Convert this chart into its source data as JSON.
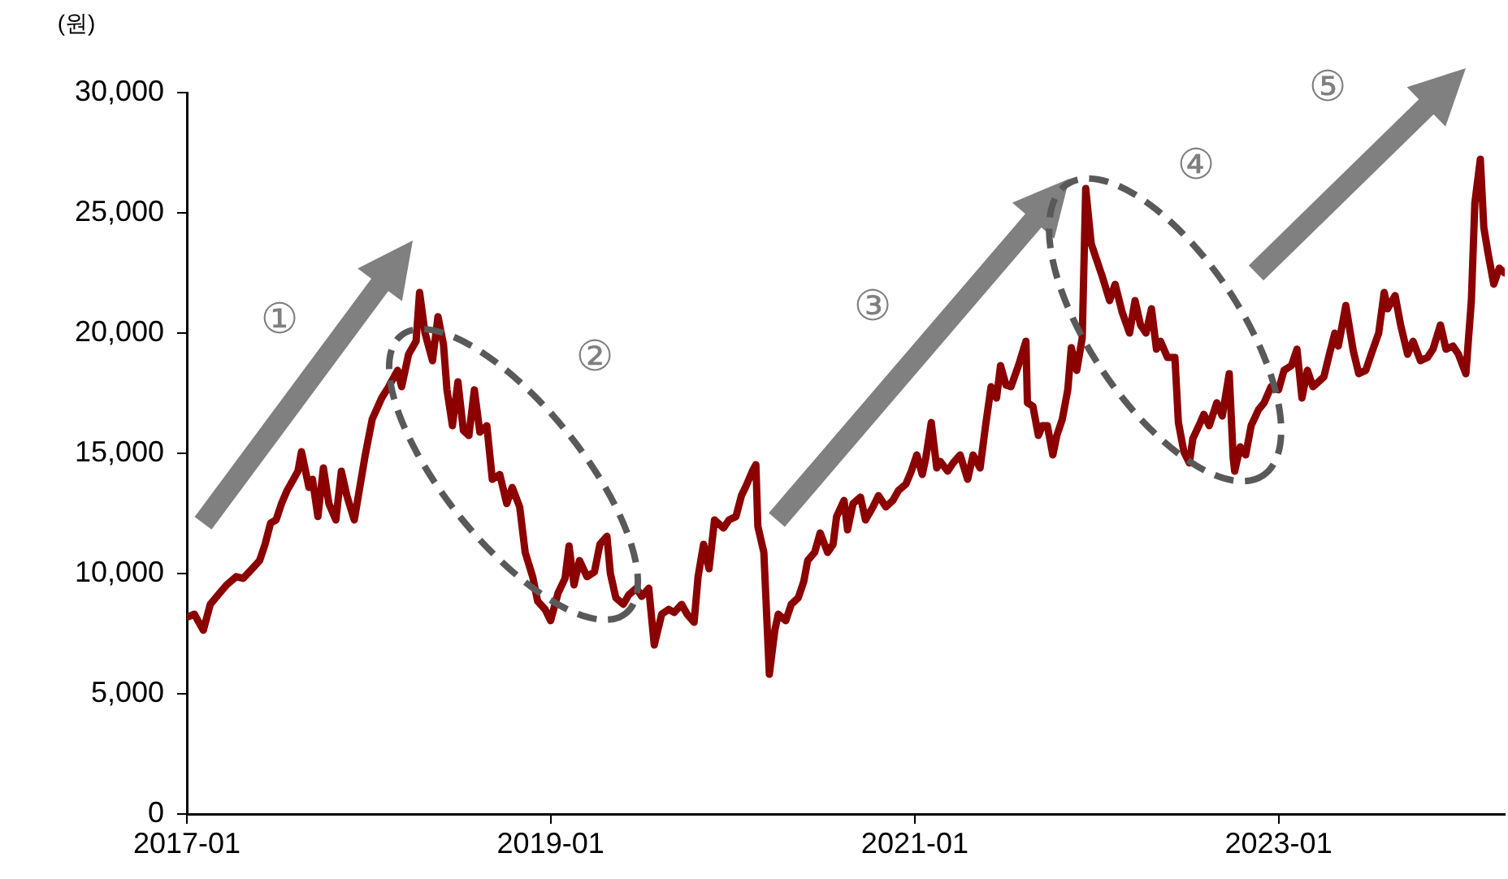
{
  "chart_data": {
    "type": "line",
    "ylabel": "(원)",
    "x": [
      "2017-01-01",
      "2017-01-16",
      "2017-02-03",
      "2017-02-17",
      "2017-03-08",
      "2017-03-22",
      "2017-04-10",
      "2017-04-24",
      "2017-05-12",
      "2017-05-27",
      "2017-06-07",
      "2017-06-18",
      "2017-06-29",
      "2017-07-10",
      "2017-07-21",
      "2017-08-01",
      "2017-08-12",
      "2017-08-19",
      "2017-09-03",
      "2017-09-10",
      "2017-09-21",
      "2017-10-02",
      "2017-10-13",
      "2017-10-27",
      "2017-11-07",
      "2017-11-18",
      "2017-12-03",
      "2017-12-14",
      "2017-12-25",
      "2018-01-08",
      "2018-01-27",
      "2018-02-10",
      "2018-02-28",
      "2018-03-08",
      "2018-03-22",
      "2018-04-06",
      "2018-04-13",
      "2018-04-24",
      "2018-05-09",
      "2018-05-20",
      "2018-05-31",
      "2018-06-07",
      "2018-06-18",
      "2018-06-29",
      "2018-07-10",
      "2018-07-21",
      "2018-08-01",
      "2018-08-12",
      "2018-08-26",
      "2018-09-06",
      "2018-09-21",
      "2018-10-05",
      "2018-10-16",
      "2018-10-31",
      "2018-11-11",
      "2018-11-26",
      "2018-12-06",
      "2018-12-21",
      "2019-01-01",
      "2019-01-16",
      "2019-01-30",
      "2019-02-07",
      "2019-02-17",
      "2019-02-28",
      "2019-03-15",
      "2019-03-30",
      "2019-04-10",
      "2019-04-24",
      "2019-05-01",
      "2019-05-12",
      "2019-05-27",
      "2019-06-07",
      "2019-06-22",
      "2019-07-03",
      "2019-07-17",
      "2019-07-28",
      "2019-08-12",
      "2019-08-26",
      "2019-09-06",
      "2019-09-21",
      "2019-10-02",
      "2019-10-16",
      "2019-10-24",
      "2019-11-04",
      "2019-11-15",
      "2019-11-26",
      "2019-12-03",
      "2019-12-14",
      "2019-12-25",
      "2020-01-08",
      "2020-01-19",
      "2020-01-27",
      "2020-02-10",
      "2020-02-17",
      "2020-02-21",
      "2020-03-04",
      "2020-03-15",
      "2020-03-26",
      "2020-04-02",
      "2020-04-17",
      "2020-04-28",
      "2020-05-12",
      "2020-05-23",
      "2020-05-31",
      "2020-06-14",
      "2020-06-25",
      "2020-07-10",
      "2020-07-21",
      "2020-07-28",
      "2020-08-12",
      "2020-08-19",
      "2020-08-30",
      "2020-09-14",
      "2020-09-24",
      "2020-10-09",
      "2020-10-20",
      "2020-11-04",
      "2020-11-18",
      "2020-11-29",
      "2020-12-14",
      "2020-12-25",
      "2021-01-05",
      "2021-01-16",
      "2021-01-23",
      "2021-02-03",
      "2021-02-14",
      "2021-02-21",
      "2021-03-08",
      "2021-03-19",
      "2021-04-02",
      "2021-04-17",
      "2021-04-28",
      "2021-05-12",
      "2021-05-23",
      "2021-06-03",
      "2021-06-14",
      "2021-06-22",
      "2021-07-03",
      "2021-07-13",
      "2021-07-28",
      "2021-08-12",
      "2021-08-15",
      "2021-08-26",
      "2021-09-06",
      "2021-09-14",
      "2021-09-24",
      "2021-10-05",
      "2021-10-13",
      "2021-10-24",
      "2021-11-04",
      "2021-11-11",
      "2021-11-22",
      "2021-12-03",
      "2021-12-10",
      "2021-12-21",
      "2022-01-01",
      "2022-01-12",
      "2022-01-27",
      "2022-02-07",
      "2022-02-21",
      "2022-03-08",
      "2022-03-19",
      "2022-03-30",
      "2022-04-10",
      "2022-04-21",
      "2022-05-01",
      "2022-05-09",
      "2022-05-23",
      "2022-06-07",
      "2022-06-14",
      "2022-06-25",
      "2022-07-06",
      "2022-07-13",
      "2022-07-28",
      "2022-08-04",
      "2022-08-15",
      "2022-08-30",
      "2022-09-10",
      "2022-09-24",
      "2022-10-02",
      "2022-10-05",
      "2022-10-16",
      "2022-10-27",
      "2022-11-07",
      "2022-11-22",
      "2022-12-03",
      "2022-12-17",
      "2023-01-01",
      "2023-01-12",
      "2023-01-27",
      "2023-02-07",
      "2023-02-17",
      "2023-02-28",
      "2023-03-11",
      "2023-03-22",
      "2023-04-02",
      "2023-04-13",
      "2023-04-24",
      "2023-05-01",
      "2023-05-16",
      "2023-05-31",
      "2023-06-11",
      "2023-06-25",
      "2023-07-06",
      "2023-07-21",
      "2023-08-01",
      "2023-08-08",
      "2023-08-23",
      "2023-09-03",
      "2023-09-17",
      "2023-09-28",
      "2023-10-13",
      "2023-10-27",
      "2023-11-07",
      "2023-11-22",
      "2023-12-03",
      "2023-12-17",
      "2023-12-28",
      "2024-01-12",
      "2024-01-23",
      "2024-01-30",
      "2024-02-10",
      "2024-02-17",
      "2024-02-25",
      "2024-03-08",
      "2024-03-19",
      "2024-03-30"
    ],
    "series": [
      {
        "color": "#8b0000",
        "values": [
          8180,
          8310,
          7640,
          8720,
          9190,
          9530,
          9870,
          9800,
          10200,
          10540,
          11220,
          12100,
          12230,
          12910,
          13450,
          13850,
          14260,
          15070,
          13580,
          13920,
          12370,
          14390,
          12910,
          12230,
          14260,
          13240,
          12230,
          13580,
          14930,
          16420,
          17300,
          17770,
          18450,
          17770,
          19120,
          19660,
          21690,
          20000,
          18850,
          20680,
          19530,
          17640,
          16150,
          17970,
          15950,
          15740,
          17640,
          15880,
          16150,
          13920,
          14120,
          12910,
          13580,
          12770,
          10880,
          9870,
          8850,
          8510,
          8040,
          9190,
          9800,
          11150,
          9530,
          10540,
          9870,
          10070,
          11220,
          11550,
          10000,
          8990,
          8720,
          9120,
          9390,
          9050,
          9390,
          7030,
          8310,
          8510,
          8380,
          8720,
          8310,
          7970,
          9870,
          11220,
          10200,
          12230,
          12100,
          11890,
          12230,
          12370,
          13240,
          13580,
          14260,
          14530,
          11960,
          10880,
          5810,
          7640,
          8310,
          8040,
          8720,
          8990,
          9660,
          10540,
          10880,
          11690,
          10880,
          11220,
          12370,
          13040,
          11820,
          12910,
          13180,
          12230,
          12770,
          13240,
          12770,
          13040,
          13450,
          13720,
          14260,
          14930,
          14120,
          14800,
          16280,
          14390,
          14660,
          14260,
          14600,
          14930,
          13920,
          14930,
          14390,
          16150,
          17770,
          17300,
          18650,
          17840,
          17770,
          18650,
          19660,
          17100,
          16960,
          15740,
          16150,
          16150,
          14930,
          15740,
          16420,
          17640,
          19390,
          18450,
          19800,
          26010,
          23720,
          23040,
          22370,
          21350,
          22030,
          20880,
          20000,
          21350,
          20340,
          20000,
          21010,
          19330,
          19660,
          18990,
          18990,
          16280,
          15070,
          14600,
          15610,
          16280,
          16620,
          16150,
          17100,
          16550,
          18310,
          14800,
          14260,
          15270,
          14930,
          16150,
          16820,
          17100,
          17770,
          17640,
          18450,
          18650,
          19330,
          17300,
          18450,
          17770,
          17970,
          18180,
          19120,
          20000,
          19460,
          21150,
          19260,
          18310,
          18450,
          19120,
          20000,
          21690,
          21010,
          21560,
          20340,
          19120,
          19660,
          18850,
          18990,
          19330,
          20340,
          19330,
          19460,
          19120,
          18310,
          21350,
          25410,
          27230,
          24390,
          23380,
          22030,
          22700,
          22500
        ]
      }
    ],
    "xlim": [
      "2017-01-01",
      "2024-03-30"
    ],
    "xticks": [
      "2017-01",
      "2019-01",
      "2021-01",
      "2023-01"
    ],
    "ylim": [
      0,
      30000
    ],
    "yticks": [
      0,
      {
        "value": 5000,
        "label": "5,000"
      },
      {
        "value": 10000,
        "label": "10,000"
      },
      {
        "value": 15000,
        "label": "15,000"
      },
      {
        "value": 20000,
        "label": "20,000"
      },
      {
        "value": 25000,
        "label": "25,000"
      },
      {
        "value": 30000,
        "label": "30,000"
      }
    ],
    "grid": false,
    "legend": false,
    "marker": "none",
    "line_style": "solid",
    "annotations": [
      "①",
      "②",
      "③",
      "④",
      "⑤"
    ]
  }
}
